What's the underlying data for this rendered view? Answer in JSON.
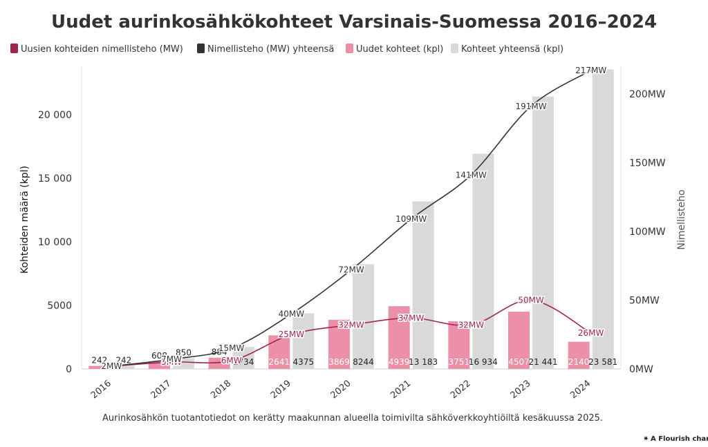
{
  "chart_data": {
    "type": "bar",
    "title": "Uudet aurinkosähkökohteet Varsinais-Suomessa 2016–2024",
    "categories": [
      "2016",
      "2017",
      "2018",
      "2019",
      "2020",
      "2021",
      "2022",
      "2023",
      "2024"
    ],
    "ylabel": "Kohteiden määrä (kpl)",
    "ylabel_right": "Nimellisteho",
    "ylim": [
      0,
      23600
    ],
    "ylim_right": [
      0,
      218
    ],
    "y_ticks": [
      "0",
      "5000",
      "10 000",
      "15 000",
      "20 000"
    ],
    "y_right_ticks": [
      "0MW",
      "50MW",
      "100MW",
      "150MW",
      "200MW"
    ],
    "legend_position": "top-left",
    "series": [
      {
        "name": "Uusien kohteiden nimellisteho (MW)",
        "kind": "line",
        "axis": "right",
        "color": "#a0244d",
        "values": [
          2,
          5,
          6,
          25,
          32,
          37,
          32,
          50,
          26
        ],
        "labels": [
          "2MW",
          "5MW",
          "6MW",
          "25MW",
          "32MW",
          "37MW",
          "32MW",
          "50MW",
          "26MW"
        ]
      },
      {
        "name": "Nimellisteho (MW) yhteensä",
        "kind": "line",
        "axis": "right",
        "color": "#333333",
        "values": [
          2,
          7,
          15,
          40,
          72,
          109,
          141,
          191,
          217
        ],
        "labels": [
          "2MW",
          "7MW",
          "15MW",
          "40MW",
          "72MW",
          "109MW",
          "141MW",
          "191MW",
          "217MW"
        ]
      },
      {
        "name": "Uudet kohteet (kpl)",
        "kind": "bar",
        "axis": "left",
        "color": "#ec8fa8",
        "values": [
          242,
          608,
          884,
          2641,
          3869,
          4939,
          3751,
          4507,
          2140
        ],
        "labels": [
          "242",
          "608",
          "884",
          "2641",
          "3869",
          "4939",
          "3751",
          "4507",
          "2140"
        ]
      },
      {
        "name": "Kohteet yhteensä (kpl)",
        "kind": "bar",
        "axis": "left",
        "color": "#d9d9d9",
        "values": [
          242,
          850,
          1734,
          4375,
          8244,
          13183,
          16934,
          21441,
          23581
        ],
        "labels": [
          "242",
          "850",
          "1734",
          "4375",
          "8244",
          "13 183",
          "16 934",
          "21 441",
          "23 581"
        ]
      }
    ],
    "annotation": "Aurinkosähkön tuotantotiedot on kerätty maakunnan alueella toimivilta sähköverkkoyhtiöiltä kesäkuussa 2025."
  },
  "branding": {
    "text": "A Flourish chart"
  }
}
